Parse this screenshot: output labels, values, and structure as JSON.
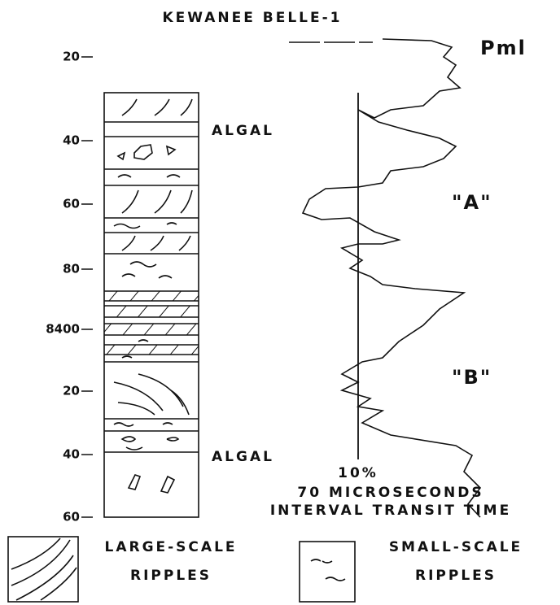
{
  "title": "KEWANEE BELLE-1",
  "depth_labels": [
    "20",
    "40",
    "60",
    "80",
    "8400",
    "20",
    "40",
    "60"
  ],
  "annotations": {
    "formation": "Pml",
    "algal_top": "ALGAL",
    "algal_bottom": "ALGAL",
    "zone_a": "\"A\"",
    "zone_b": "\"B\"",
    "percent": "10%",
    "scale": "70 MICROSECONDS",
    "axis": "INTERVAL TRANSIT TIME"
  },
  "legend": [
    {
      "line1": "LARGE-SCALE",
      "line2": "RIPPLES"
    },
    {
      "line1": "SMALL-SCALE",
      "line2": "RIPPLES"
    }
  ]
}
